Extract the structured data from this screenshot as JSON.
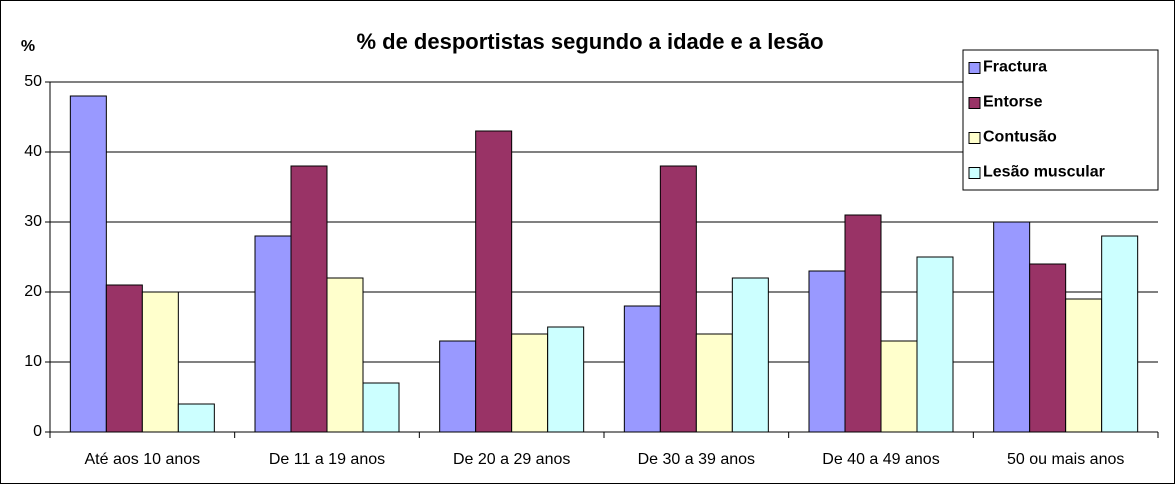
{
  "chart_data": {
    "type": "bar",
    "title": "% de desportistas segundo a idade e a lesão",
    "y_label": "%",
    "categories": [
      "Até aos 10 anos",
      "De 11 a 19 anos",
      "De 20 a 29 anos",
      "De 30 a 39 anos",
      "De 40 a 49 anos",
      "50 ou mais anos"
    ],
    "series": [
      {
        "name": "Fractura",
        "color": "#9999ff",
        "values": [
          48,
          28,
          13,
          18,
          23,
          30
        ]
      },
      {
        "name": "Entorse",
        "color": "#993366",
        "values": [
          21,
          38,
          43,
          38,
          31,
          24
        ]
      },
      {
        "name": "Contusão",
        "color": "#ffffcc",
        "values": [
          20,
          22,
          14,
          14,
          13,
          19
        ]
      },
      {
        "name": "Lesão muscular",
        "color": "#ccffff",
        "values": [
          4,
          7,
          15,
          22,
          25,
          28
        ]
      }
    ],
    "ylim": [
      0,
      50
    ],
    "yticks": [
      0,
      10,
      20,
      30,
      40,
      50
    ],
    "grid": true,
    "legend": "top-right"
  }
}
